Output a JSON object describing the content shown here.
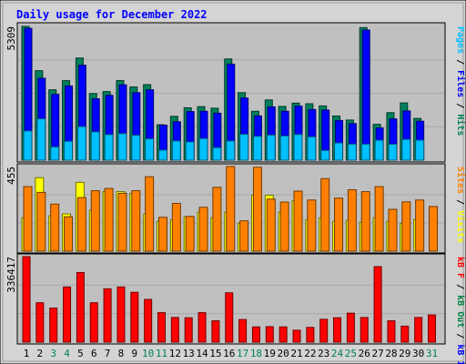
{
  "chart_data": {
    "type": "bar",
    "title": "Daily usage for December 2022",
    "days": [
      "1",
      "2",
      "3",
      "4",
      "5",
      "6",
      "7",
      "8",
      "9",
      "10",
      "11",
      "12",
      "13",
      "14",
      "15",
      "16",
      "17",
      "18",
      "19",
      "20",
      "21",
      "22",
      "23",
      "24",
      "25",
      "26",
      "27",
      "28",
      "29",
      "30",
      "31"
    ],
    "weekend_days": [
      "3",
      "4",
      "10",
      "11",
      "17",
      "18",
      "24",
      "25",
      "31"
    ],
    "panels": {
      "hits": {
        "max_label": "5309",
        "legend": [
          {
            "text": "Hits",
            "color": "#00805c"
          },
          {
            "text": "Files",
            "color": "#0000ff"
          },
          {
            "text": "Pages",
            "color": "#00c0ff"
          }
        ],
        "ylim": [
          0,
          5309
        ],
        "series": [
          {
            "name": "Hits",
            "color": "#00805c",
            "values": [
              5309,
              3551,
              2793,
              3156,
              4054,
              2644,
              2723,
              3159,
              2905,
              2999,
              1405,
              1739,
              2079,
              2124,
              2062,
              4016,
              2679,
              1940,
              2390,
              2133,
              2264,
              2239,
              2153,
              1753,
              1593,
              5261,
              1424,
              1886,
              2271,
              1656,
              0
            ]
          },
          {
            "name": "Files",
            "color": "#0000ff",
            "values": [
              5233,
              3249,
              2610,
              2946,
              3768,
              2437,
              2572,
              2990,
              2679,
              2793,
              1393,
              1525,
              1929,
              1941,
              1866,
              3812,
              2467,
              1758,
              2113,
              1941,
              2145,
              2010,
              1989,
              1576,
              1450,
              5163,
              1279,
              1637,
              1953,
              1545,
              0
            ]
          },
          {
            "name": "Pages",
            "color": "#00c0ff",
            "values": [
              1163,
              1642,
              525,
              750,
              1331,
              1125,
              1016,
              1057,
              989,
              849,
              402,
              764,
              727,
              858,
              498,
              764,
              1031,
              949,
              996,
              961,
              1020,
              927,
              387,
              684,
              638,
              636,
              794,
              633,
              824,
              795,
              0
            ]
          }
        ]
      },
      "visits": {
        "max_label": "455",
        "legend": [
          {
            "text": "Visits",
            "color": "#ffff00"
          },
          {
            "text": "Sites",
            "color": "#ff8000"
          }
        ],
        "ylim": [
          0,
          455
        ],
        "series": [
          {
            "name": "Visits",
            "color": "#ffff00",
            "values": [
              180,
              395,
              190,
              200,
              370,
              220,
              320,
              320,
              310,
              200,
              160,
              170,
              185,
              210,
              180,
              210,
              150,
              300,
              300,
              210,
              270,
              170,
              180,
              160,
              165,
              155,
              180,
              160,
              150,
              170,
              0
            ]
          },
          {
            "name": "Sites",
            "color": "#ff8000",
            "values": [
              347,
              316,
              253,
              185,
              288,
              325,
              337,
              311,
              325,
              400,
              182,
              257,
              187,
              236,
              343,
              455,
              163,
              451,
              280,
              264,
              323,
              275,
              390,
              285,
              330,
              320,
              347,
              225,
              265,
              275,
              240
            ]
          }
        ]
      },
      "kbytes": {
        "max_label": "336417",
        "legend": [
          {
            "text": "kB In",
            "color": "#0000ff"
          },
          {
            "text": "kB Out",
            "color": "#008040"
          },
          {
            "text": "kB F",
            "color": "#ff0000"
          }
        ],
        "ylim": [
          0,
          336417
        ],
        "series": [
          {
            "name": "kB F",
            "color": "#ff0000",
            "values": [
              336417,
              155000,
              134000,
              217000,
              274000,
              155000,
              210000,
              217000,
              196000,
              168000,
              116000,
              97000,
              96000,
              116000,
              84000,
              194000,
              89000,
              60000,
              61000,
              60000,
              47000,
              58000,
              90000,
              96000,
              114000,
              97000,
              297000,
              84000,
              63000,
              97000,
              107000
            ]
          }
        ]
      }
    }
  }
}
